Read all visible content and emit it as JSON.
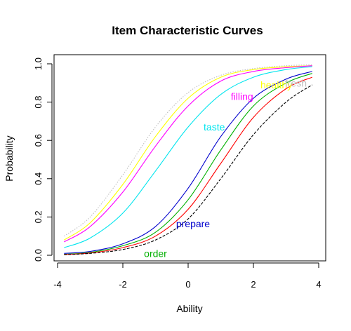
{
  "chart_data": {
    "type": "line",
    "title": "Item Characteristic Curves",
    "xlabel": "Ability",
    "ylabel": "Probability",
    "xlim": [
      -4,
      4
    ],
    "ylim": [
      0,
      1
    ],
    "x_ticks": [
      "-4",
      "-2",
      "0",
      "2",
      "4"
    ],
    "y_ticks": [
      "0.0",
      "0.2",
      "0.4",
      "0.6",
      "0.8",
      "1.0"
    ],
    "x": [
      -3.8,
      -3,
      -2,
      -1,
      0,
      1,
      2,
      3,
      3.8
    ],
    "series": [
      {
        "name": "",
        "color": "#bebebe",
        "style": "dotted",
        "values": [
          0.1,
          0.2,
          0.42,
          0.67,
          0.85,
          0.94,
          0.975,
          0.99,
          0.995
        ]
      },
      {
        "name": "",
        "color": "#ffff00",
        "style": "solid",
        "values": [
          0.08,
          0.17,
          0.37,
          0.62,
          0.82,
          0.93,
          0.97,
          0.985,
          0.99
        ]
      },
      {
        "name": "filling",
        "color": "#ff00ff",
        "style": "solid",
        "values": [
          0.07,
          0.15,
          0.33,
          0.57,
          0.78,
          0.91,
          0.96,
          0.98,
          0.99
        ]
      },
      {
        "name": "taste",
        "color": "#00e5ee",
        "style": "solid",
        "values": [
          0.04,
          0.09,
          0.22,
          0.44,
          0.67,
          0.84,
          0.93,
          0.97,
          0.985
        ]
      },
      {
        "name": "prepare",
        "color": "#0000cd",
        "style": "solid",
        "values": [
          0.01,
          0.02,
          0.06,
          0.15,
          0.35,
          0.62,
          0.82,
          0.92,
          0.96
        ]
      },
      {
        "name": "order",
        "color": "#00b000",
        "style": "solid",
        "values": [
          0.005,
          0.015,
          0.05,
          0.12,
          0.29,
          0.55,
          0.78,
          0.9,
          0.95
        ]
      },
      {
        "name": "",
        "color": "#ff0000",
        "style": "solid",
        "values": [
          0.004,
          0.012,
          0.04,
          0.1,
          0.24,
          0.48,
          0.72,
          0.87,
          0.93
        ]
      },
      {
        "name": "",
        "color": "#000000",
        "style": "dashed",
        "values": [
          0.003,
          0.01,
          0.03,
          0.08,
          0.19,
          0.4,
          0.63,
          0.8,
          0.89
        ]
      }
    ],
    "labels": [
      {
        "text": "filling",
        "color": "#ff00ff",
        "x": 1.65,
        "y": 0.83
      },
      {
        "text": "healthy",
        "color": "#ffff00",
        "x": 2.7,
        "y": 0.89
      },
      {
        "text": "fresh",
        "color": "#bebebe",
        "x": 3.3,
        "y": 0.9
      },
      {
        "text": "taste",
        "color": "#00e5ee",
        "x": 0.8,
        "y": 0.67
      },
      {
        "text": "prepare",
        "color": "#0000cd",
        "x": 0.15,
        "y": 0.165
      },
      {
        "text": "order",
        "color": "#00b000",
        "x": -1.0,
        "y": 0.01
      }
    ],
    "grid": false
  }
}
